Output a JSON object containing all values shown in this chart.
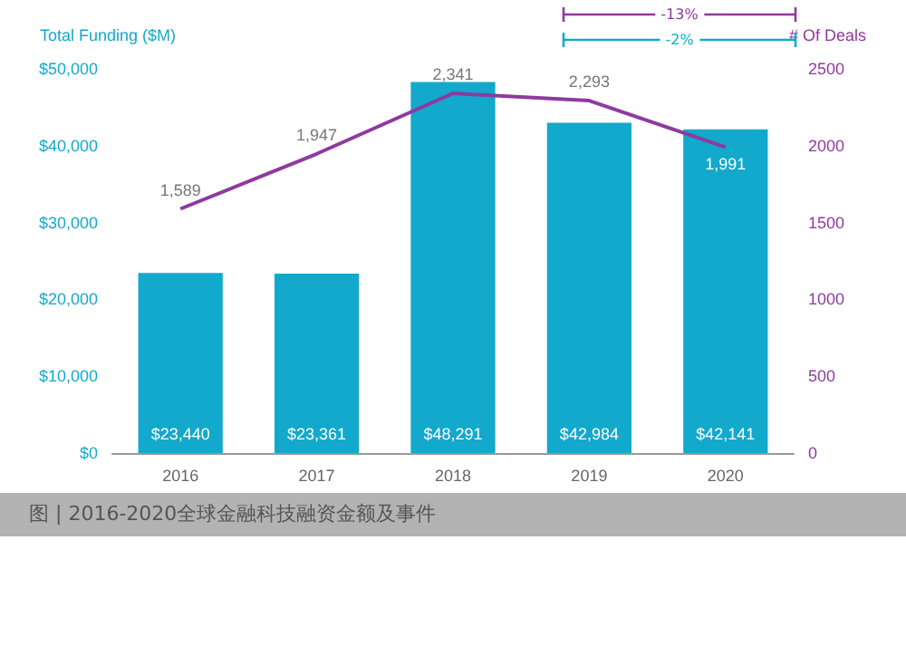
{
  "chart_data": {
    "type": "bar",
    "categories": [
      "2016",
      "2017",
      "2018",
      "2019",
      "2020"
    ],
    "ylabel": "Total Funding ($M)",
    "y2label": "# Of Deals",
    "series": [
      {
        "color": "#12a9cc",
        "values": [
          23440,
          23361,
          48291,
          42984,
          42141
        ],
        "value_labels": [
          "$23,440",
          "$23,361",
          "$48,291",
          "$42,984",
          "$42,141"
        ]
      },
      {
        "type": "line",
        "axis": "y2",
        "color": "#8e3a9e",
        "values": [
          1589,
          1947,
          2341,
          2293,
          1991
        ],
        "value_labels": [
          "1,589",
          "1,947",
          "2,341",
          "2,293",
          "1,991"
        ]
      }
    ],
    "ylim": [
      0,
      50000
    ],
    "yticks": [
      {
        "value": 0,
        "label": "$0"
      },
      {
        "value": 10000,
        "label": "$10,000"
      },
      {
        "value": 20000,
        "label": "$20,000"
      },
      {
        "value": 30000,
        "label": "$30,000"
      },
      {
        "value": 40000,
        "label": "$40,000"
      },
      {
        "value": 50000,
        "label": "$50,000"
      }
    ],
    "y2lim": [
      0,
      2500
    ],
    "y2ticks": [
      0,
      500,
      1000,
      1500,
      2000,
      2500
    ],
    "marker": "none",
    "grid": false,
    "annotations": [
      "-13%",
      "-2%",
      "图 | 2016-2020全球金融科技融资金额及事件"
    ]
  }
}
